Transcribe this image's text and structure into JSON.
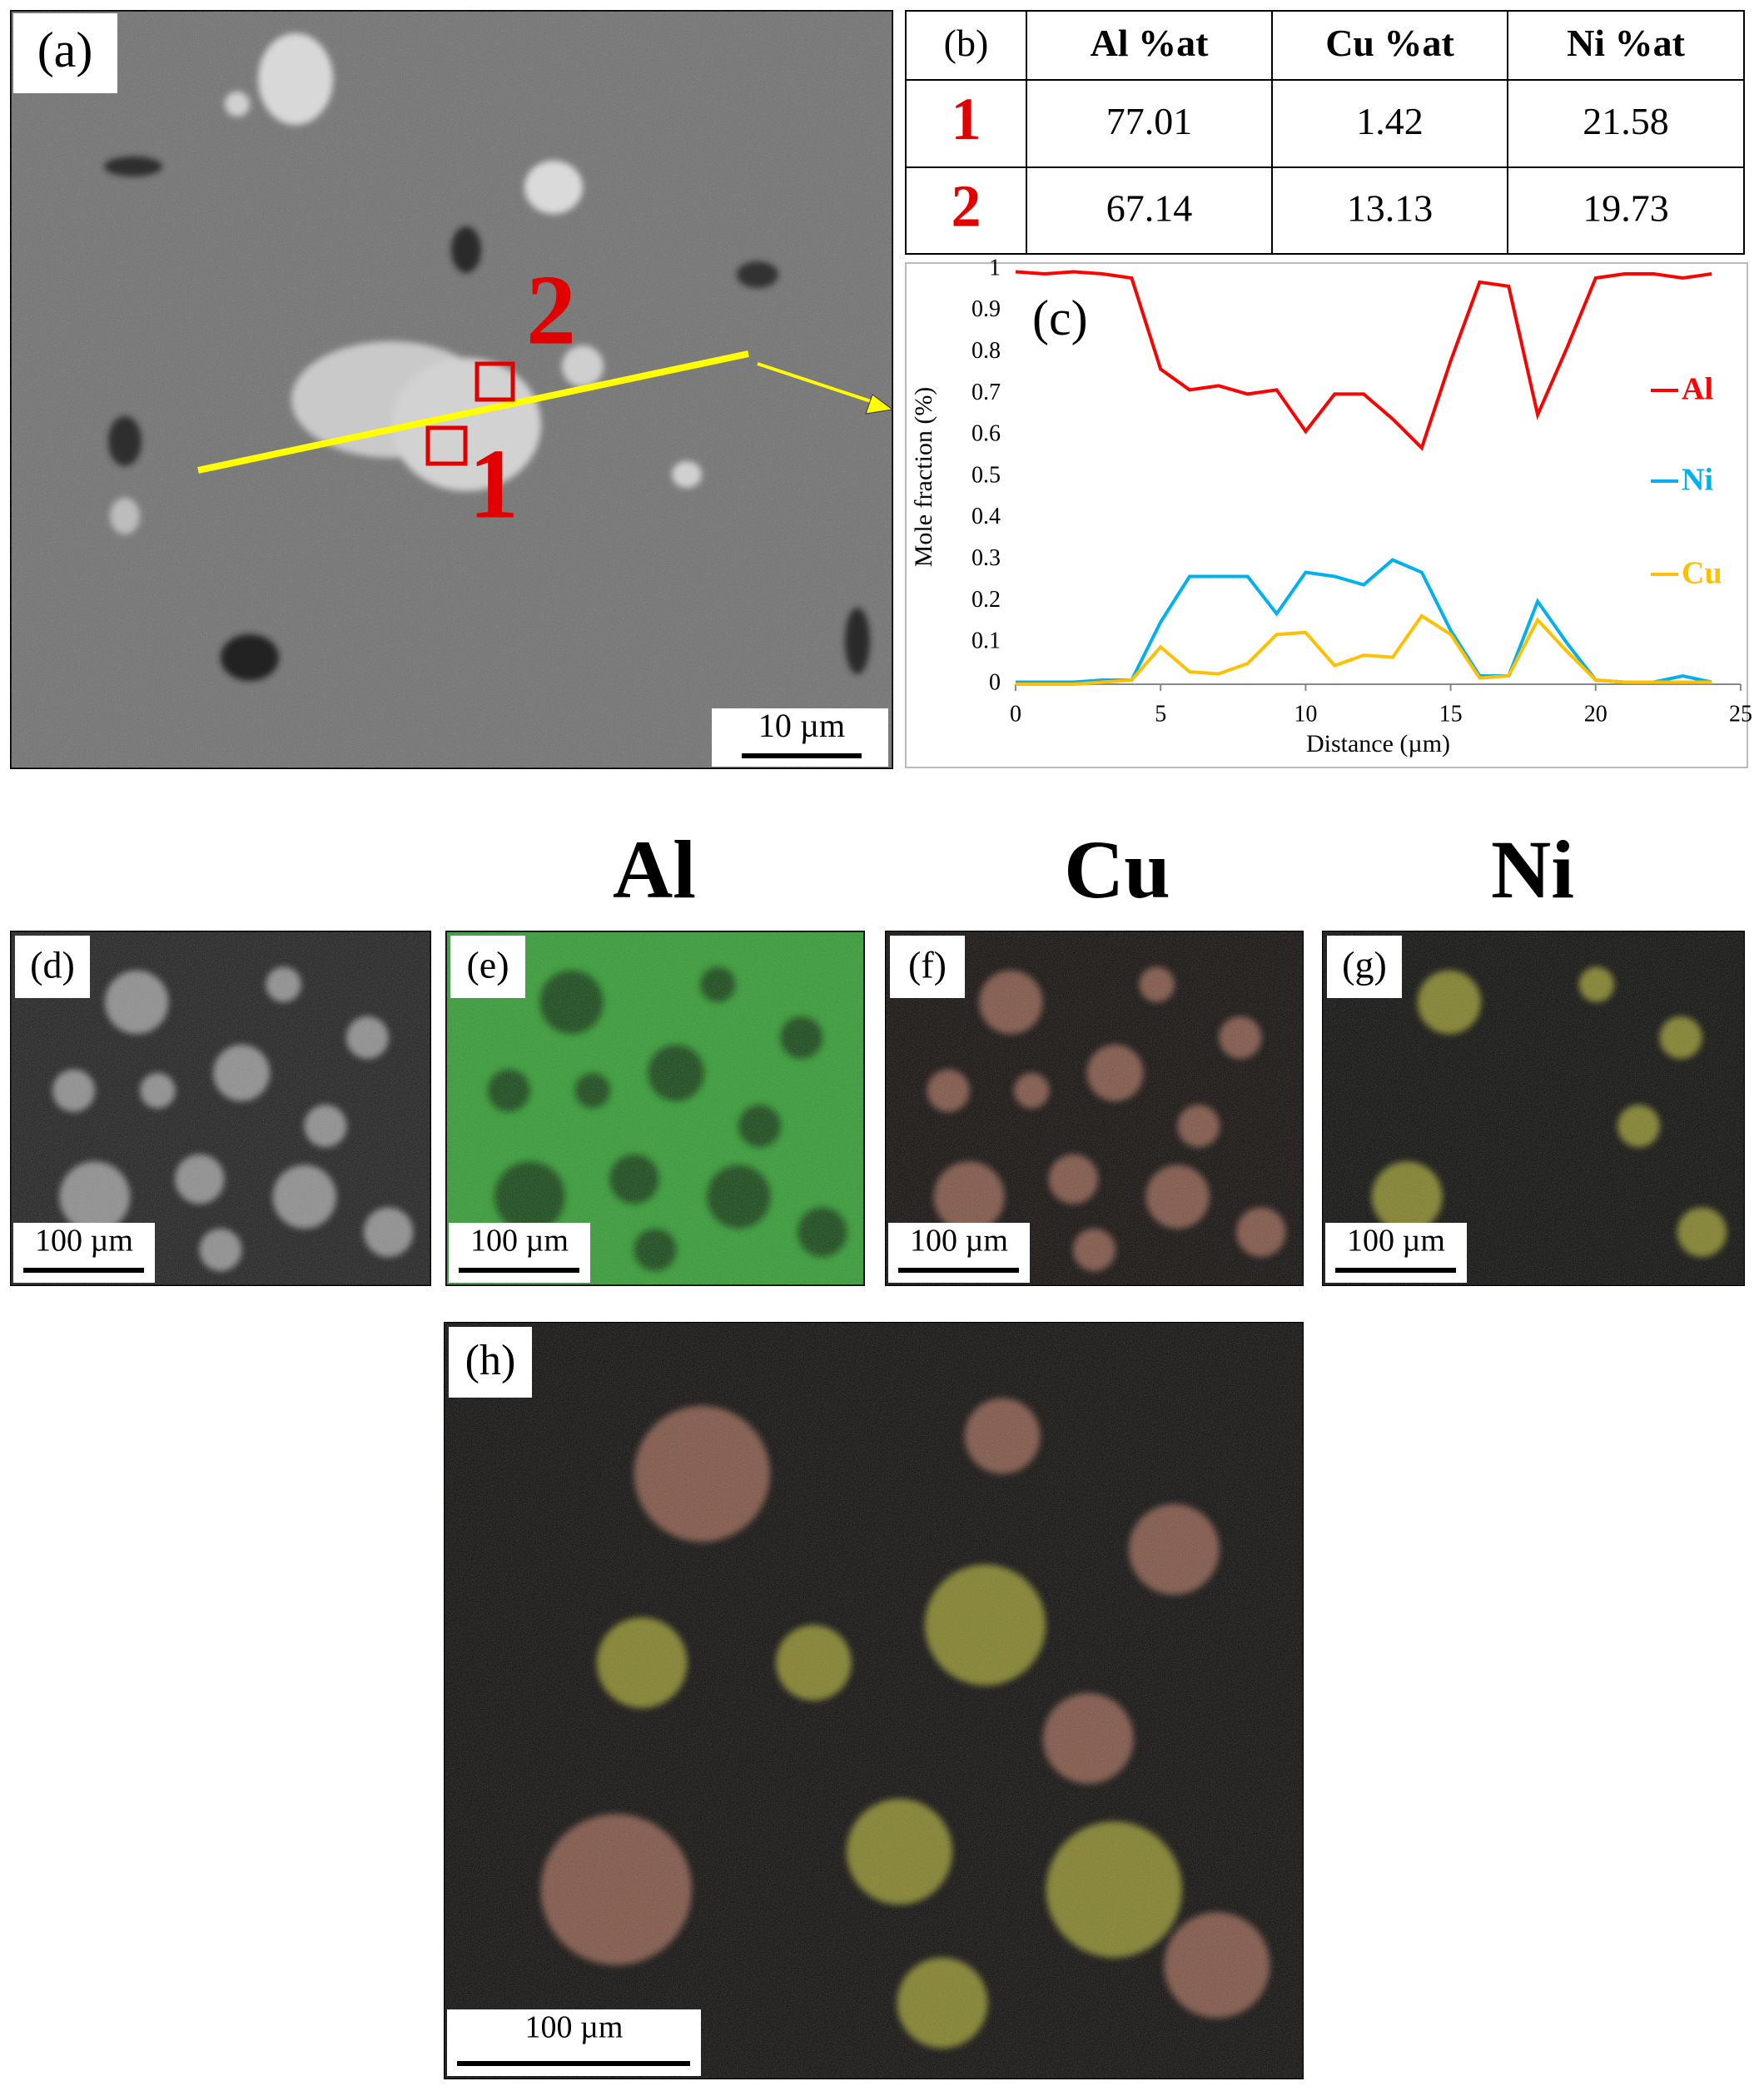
{
  "panel_a": {
    "label": "(a)",
    "point_2": "2",
    "point_1": "1",
    "scale_bar": "10 µm"
  },
  "table": {
    "label": "(b)",
    "header": [
      "Al %at",
      "Cu %at",
      "Ni %at"
    ],
    "rows": [
      [
        "1",
        "77.01",
        "1.42",
        "21.58"
      ],
      [
        "2",
        "67.14",
        "13.13",
        "19.73"
      ]
    ]
  },
  "chart_data": {
    "type": "line",
    "label": "(c)",
    "y_label": "Mole fraction (%)",
    "x_label": "Distance (µm)",
    "x": [
      0,
      1,
      2,
      3,
      4,
      5,
      6,
      7,
      8,
      9,
      10,
      11,
      12,
      13,
      14,
      15,
      16,
      17,
      18,
      19,
      20,
      21,
      22,
      23,
      24
    ],
    "series": [
      {
        "name": "Al",
        "color": "#ff0000",
        "values": [
          0.995,
          0.99,
          0.995,
          0.99,
          0.98,
          0.76,
          0.71,
          0.72,
          0.7,
          0.71,
          0.61,
          0.7,
          0.7,
          0.64,
          0.57,
          0.78,
          0.97,
          0.96,
          0.65,
          0.81,
          0.98,
          0.99,
          0.99,
          0.98,
          0.99
        ]
      },
      {
        "name": "Ni",
        "color": "#00b0f0",
        "values": [
          0.005,
          0.005,
          0.005,
          0.01,
          0.01,
          0.15,
          0.26,
          0.26,
          0.26,
          0.17,
          0.27,
          0.26,
          0.24,
          0.3,
          0.27,
          0.13,
          0.02,
          0.02,
          0.2,
          0.1,
          0.01,
          0.005,
          0.005,
          0.02,
          0.005
        ]
      },
      {
        "name": "Cu",
        "color": "#ffc000",
        "values": [
          0,
          0,
          0,
          0.005,
          0.01,
          0.09,
          0.03,
          0.025,
          0.05,
          0.12,
          0.125,
          0.045,
          0.07,
          0.065,
          0.165,
          0.12,
          0.015,
          0.02,
          0.155,
          0.08,
          0.01,
          0.005,
          0.005,
          0.005,
          0.005
        ]
      }
    ],
    "xlim": [
      0,
      25
    ],
    "xticks": [
      0,
      5,
      10,
      15,
      20,
      25
    ],
    "ylim": [
      0,
      1
    ],
    "yticks": [
      0,
      0.1,
      0.2,
      0.3,
      0.4,
      0.5,
      0.6,
      0.7,
      0.8,
      0.9,
      1
    ],
    "legend": "right"
  },
  "map_headings": [
    "Al",
    "Cu",
    "Ni"
  ],
  "maps": [
    {
      "label": "(d)",
      "scale_bar": "100 µm"
    },
    {
      "label": "(e)",
      "scale_bar": "100 µm"
    },
    {
      "label": "(f)",
      "scale_bar": "100 µm"
    },
    {
      "label": "(g)",
      "scale_bar": "100 µm"
    },
    {
      "label": "(h)",
      "scale_bar": "100 µm"
    }
  ]
}
